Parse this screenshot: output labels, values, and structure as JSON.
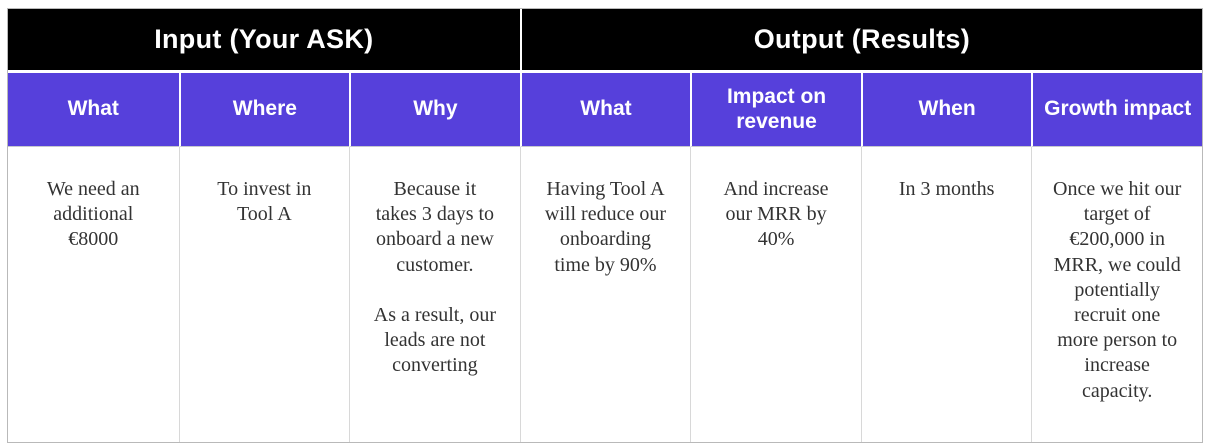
{
  "table": {
    "groups": [
      {
        "label": "Input (Your ASK)",
        "span": 3
      },
      {
        "label": "Output (Results)",
        "span": 4
      }
    ],
    "columns": [
      "What",
      "Where",
      "Why",
      "What",
      "Impact on revenue",
      "When",
      "Growth impact"
    ],
    "cells": [
      "We need an\nadditional\n€8000",
      "To invest in\nTool A",
      "Because it\ntakes 3 days to\nonboard a new\ncustomer.\n\nAs a result, our\nleads are not\nconverting",
      "Having Tool A\nwill reduce our\nonboarding\ntime by 90%",
      "And increase\nour MRR by\n40%",
      "In 3 months",
      "Once we hit our\ntarget of\n€200,000 in\nMRR, we could\npotentially\nrecruit one\nmore person to\nincrease\ncapacity."
    ]
  },
  "colors": {
    "group_header_bg": "#000000",
    "group_header_text": "#ffffff",
    "column_header_bg": "#5640db",
    "column_header_text": "#ffffff",
    "body_bg": "#ffffff",
    "body_text": "#333333",
    "divider_light": "#d8d8d8",
    "outer_border": "#b9b9b9"
  }
}
